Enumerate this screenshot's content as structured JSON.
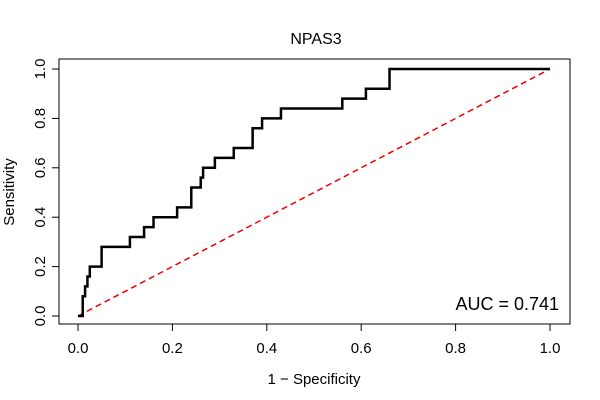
{
  "chart_data": {
    "type": "line",
    "title": "NPAS3",
    "xlabel": "1 − Specificity",
    "ylabel": "Sensitivity",
    "xlim": [
      0,
      1
    ],
    "ylim": [
      0,
      1
    ],
    "x_ticks": [
      "0.0",
      "0.2",
      "0.4",
      "0.6",
      "0.8",
      "1.0"
    ],
    "y_ticks": [
      "0.0",
      "0.2",
      "0.4",
      "0.6",
      "0.8",
      "1.0"
    ],
    "annotation": "AUC = 0.741",
    "grid": false,
    "series": [
      {
        "color": "#000000",
        "style": "solid",
        "points": [
          [
            0.0,
            0.0
          ],
          [
            0.01,
            0.0
          ],
          [
            0.01,
            0.04
          ],
          [
            0.01,
            0.08
          ],
          [
            0.015,
            0.08
          ],
          [
            0.015,
            0.12
          ],
          [
            0.02,
            0.12
          ],
          [
            0.02,
            0.16
          ],
          [
            0.025,
            0.16
          ],
          [
            0.025,
            0.2
          ],
          [
            0.05,
            0.2
          ],
          [
            0.05,
            0.28
          ],
          [
            0.11,
            0.28
          ],
          [
            0.11,
            0.32
          ],
          [
            0.14,
            0.32
          ],
          [
            0.14,
            0.36
          ],
          [
            0.16,
            0.36
          ],
          [
            0.16,
            0.4
          ],
          [
            0.21,
            0.4
          ],
          [
            0.21,
            0.44
          ],
          [
            0.24,
            0.44
          ],
          [
            0.24,
            0.52
          ],
          [
            0.26,
            0.52
          ],
          [
            0.26,
            0.56
          ],
          [
            0.265,
            0.56
          ],
          [
            0.265,
            0.6
          ],
          [
            0.29,
            0.6
          ],
          [
            0.29,
            0.64
          ],
          [
            0.33,
            0.64
          ],
          [
            0.33,
            0.68
          ],
          [
            0.37,
            0.68
          ],
          [
            0.37,
            0.76
          ],
          [
            0.39,
            0.76
          ],
          [
            0.39,
            0.8
          ],
          [
            0.43,
            0.8
          ],
          [
            0.43,
            0.84
          ],
          [
            0.56,
            0.84
          ],
          [
            0.56,
            0.88
          ],
          [
            0.61,
            0.88
          ],
          [
            0.61,
            0.92
          ],
          [
            0.66,
            0.92
          ],
          [
            0.66,
            1.0
          ],
          [
            1.0,
            1.0
          ]
        ]
      },
      {
        "color": "#ee0000",
        "style": "dashed",
        "points": [
          [
            0,
            0
          ],
          [
            1,
            1
          ]
        ]
      }
    ]
  }
}
